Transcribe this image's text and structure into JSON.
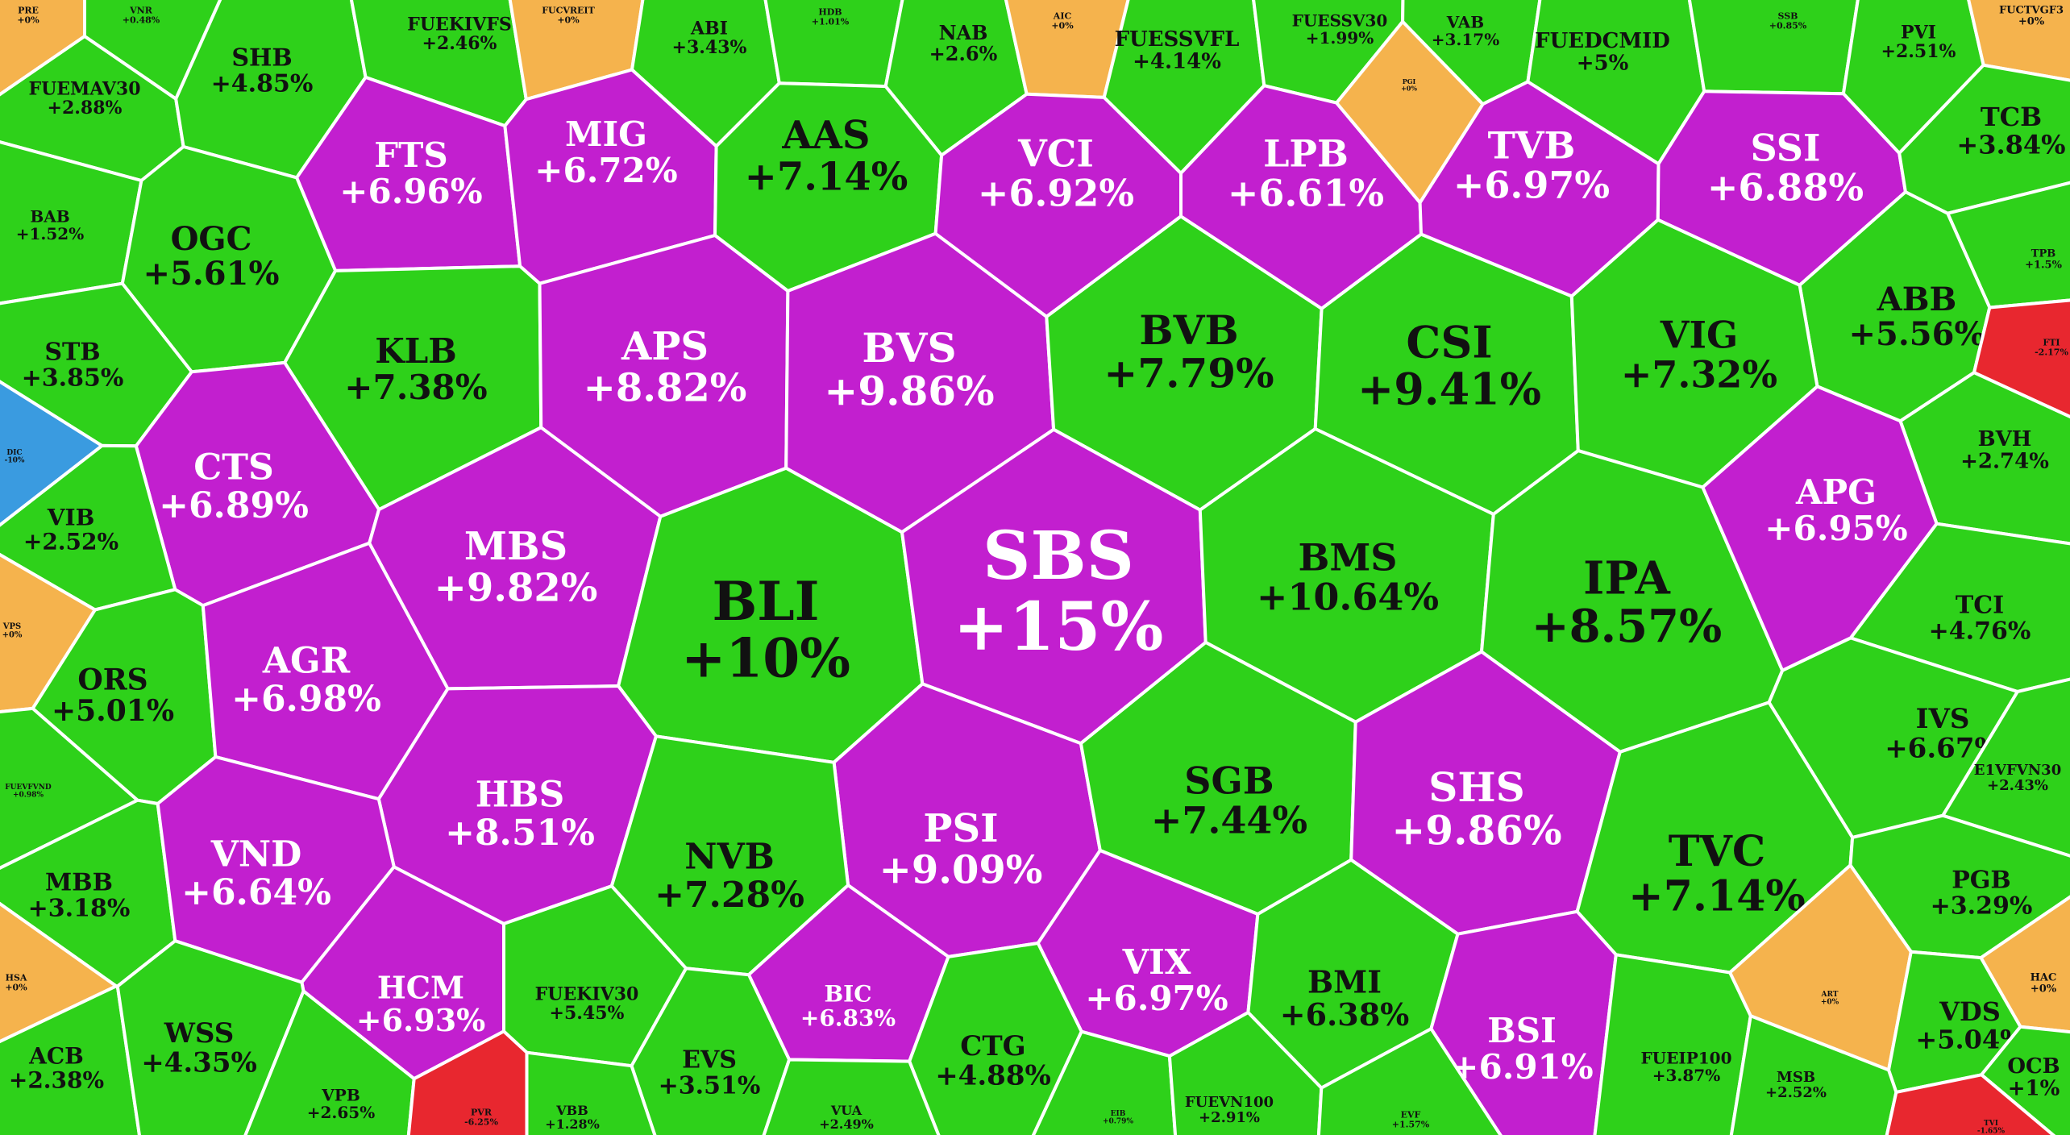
{
  "colors": {
    "up": "#2ed11a",
    "ceiling": "#c21fcf",
    "flat": "#f5b34d",
    "down": "#e8272f",
    "floor": "#3a9be0",
    "cell_border": "#ffffff",
    "text_dark": "#111111",
    "text_light": "#ffffff"
  },
  "chart_data": {
    "type": "voronoi-treemap",
    "unit": "%",
    "categories_legend_implied": [
      "ceiling",
      "up",
      "flat",
      "down",
      "floor"
    ],
    "cells": [
      {
        "label": "PRE",
        "value": "+0%",
        "status": "flat"
      },
      {
        "label": "VNR",
        "value": "+0.48%",
        "status": "up"
      },
      {
        "label": "FUEMAV30",
        "value": "+2.88%",
        "status": "up"
      },
      {
        "label": "SHB",
        "value": "+4.85%",
        "status": "up"
      },
      {
        "label": "FUEKIVFS",
        "value": "+2.46%",
        "status": "up"
      },
      {
        "label": "FUCVREIT",
        "value": "+0%",
        "status": "flat"
      },
      {
        "label": "ABI",
        "value": "+3.43%",
        "status": "up"
      },
      {
        "label": "HDB",
        "value": "+1.01%",
        "status": "up"
      },
      {
        "label": "NAB",
        "value": "+2.6%",
        "status": "up"
      },
      {
        "label": "AIC",
        "value": "+0%",
        "status": "flat"
      },
      {
        "label": "FUESSVFL",
        "value": "+4.14%",
        "status": "up"
      },
      {
        "label": "FUESSV30",
        "value": "+1.99%",
        "status": "up"
      },
      {
        "label": "VAB",
        "value": "+3.17%",
        "status": "up"
      },
      {
        "label": "FUEDCMID",
        "value": "+5%",
        "status": "up"
      },
      {
        "label": "SSB",
        "value": "+0.85%",
        "status": "up"
      },
      {
        "label": "PVI",
        "value": "+2.51%",
        "status": "up"
      },
      {
        "label": "FUCTVGF3",
        "value": "+0%",
        "status": "flat"
      },
      {
        "label": "FTS",
        "value": "+6.96%",
        "status": "ceiling"
      },
      {
        "label": "MIG",
        "value": "+6.72%",
        "status": "ceiling"
      },
      {
        "label": "AAS",
        "value": "+7.14%",
        "status": "up"
      },
      {
        "label": "VCI",
        "value": "+6.92%",
        "status": "ceiling"
      },
      {
        "label": "LPB",
        "value": "+6.61%",
        "status": "ceiling"
      },
      {
        "label": "TVB",
        "value": "+6.97%",
        "status": "ceiling"
      },
      {
        "label": "SSI",
        "value": "+6.88%",
        "status": "ceiling"
      },
      {
        "label": "TCB",
        "value": "+3.84%",
        "status": "up"
      },
      {
        "label": "PGI",
        "value": "+0%",
        "status": "flat"
      },
      {
        "label": "BAB",
        "value": "+1.52%",
        "status": "up"
      },
      {
        "label": "OGC",
        "value": "+5.61%",
        "status": "up"
      },
      {
        "label": "TPB",
        "value": "+1.5%",
        "status": "up"
      },
      {
        "label": "ABB",
        "value": "+5.56%",
        "status": "up"
      },
      {
        "label": "STB",
        "value": "+3.85%",
        "status": "up"
      },
      {
        "label": "KLB",
        "value": "+7.38%",
        "status": "up"
      },
      {
        "label": "APS",
        "value": "+8.82%",
        "status": "ceiling"
      },
      {
        "label": "BVS",
        "value": "+9.86%",
        "status": "ceiling"
      },
      {
        "label": "BVB",
        "value": "+7.79%",
        "status": "up"
      },
      {
        "label": "CSI",
        "value": "+9.41%",
        "status": "up"
      },
      {
        "label": "VIG",
        "value": "+7.32%",
        "status": "up"
      },
      {
        "label": "FTI",
        "value": "-2.17%",
        "status": "down"
      },
      {
        "label": "DIC",
        "value": "-10%",
        "status": "floor"
      },
      {
        "label": "CTS",
        "value": "+6.89%",
        "status": "ceiling"
      },
      {
        "label": "BVH",
        "value": "+2.74%",
        "status": "up"
      },
      {
        "label": "VIB",
        "value": "+2.52%",
        "status": "up"
      },
      {
        "label": "MBS",
        "value": "+9.82%",
        "status": "ceiling"
      },
      {
        "label": "BLI",
        "value": "+10%",
        "status": "up"
      },
      {
        "label": "SBS",
        "value": "+15%",
        "status": "ceiling"
      },
      {
        "label": "BMS",
        "value": "+10.64%",
        "status": "up"
      },
      {
        "label": "IPA",
        "value": "+8.57%",
        "status": "up"
      },
      {
        "label": "APG",
        "value": "+6.95%",
        "status": "ceiling"
      },
      {
        "label": "VPS",
        "value": "+0%",
        "status": "flat"
      },
      {
        "label": "ORS",
        "value": "+5.01%",
        "status": "up"
      },
      {
        "label": "AGR",
        "value": "+6.98%",
        "status": "ceiling"
      },
      {
        "label": "TCI",
        "value": "+4.76%",
        "status": "up"
      },
      {
        "label": "FUEVFVND",
        "value": "+0.98%",
        "status": "up"
      },
      {
        "label": "HBS",
        "value": "+8.51%",
        "status": "ceiling"
      },
      {
        "label": "PSI",
        "value": "+9.09%",
        "status": "ceiling"
      },
      {
        "label": "SGB",
        "value": "+7.44%",
        "status": "up"
      },
      {
        "label": "SHS",
        "value": "+9.86%",
        "status": "ceiling"
      },
      {
        "label": "IVS",
        "value": "+6.67%",
        "status": "up"
      },
      {
        "label": "E1VFVN30",
        "value": "+2.43%",
        "status": "up"
      },
      {
        "label": "MBB",
        "value": "+3.18%",
        "status": "up"
      },
      {
        "label": "VND",
        "value": "+6.64%",
        "status": "ceiling"
      },
      {
        "label": "NVB",
        "value": "+7.28%",
        "status": "up"
      },
      {
        "label": "TVC",
        "value": "+7.14%",
        "status": "up"
      },
      {
        "label": "PGB",
        "value": "+3.29%",
        "status": "up"
      },
      {
        "label": "HSA",
        "value": "+0%",
        "status": "flat"
      },
      {
        "label": "HCM",
        "value": "+6.93%",
        "status": "ceiling"
      },
      {
        "label": "FUEKIV30",
        "value": "+5.45%",
        "status": "up"
      },
      {
        "label": "BIC",
        "value": "+6.83%",
        "status": "ceiling"
      },
      {
        "label": "VIX",
        "value": "+6.97%",
        "status": "ceiling"
      },
      {
        "label": "BMI",
        "value": "+6.38%",
        "status": "up"
      },
      {
        "label": "BSI",
        "value": "+6.91%",
        "status": "ceiling"
      },
      {
        "label": "HAC",
        "value": "+0%",
        "status": "flat"
      },
      {
        "label": "ART",
        "value": "+0%",
        "status": "flat"
      },
      {
        "label": "VDS",
        "value": "+5.04%",
        "status": "up"
      },
      {
        "label": "ACB",
        "value": "+2.38%",
        "status": "up"
      },
      {
        "label": "WSS",
        "value": "+4.35%",
        "status": "up"
      },
      {
        "label": "EVS",
        "value": "+3.51%",
        "status": "up"
      },
      {
        "label": "CTG",
        "value": "+4.88%",
        "status": "up"
      },
      {
        "label": "FUEIP100",
        "value": "+3.87%",
        "status": "up"
      },
      {
        "label": "MSB",
        "value": "+2.52%",
        "status": "up"
      },
      {
        "label": "OCB",
        "value": "+1%",
        "status": "up"
      },
      {
        "label": "VPB",
        "value": "+2.65%",
        "status": "up"
      },
      {
        "label": "PVR",
        "value": "-6.25%",
        "status": "down"
      },
      {
        "label": "VBB",
        "value": "+1.28%",
        "status": "up"
      },
      {
        "label": "VUA",
        "value": "+2.49%",
        "status": "up"
      },
      {
        "label": "EIB",
        "value": "+0.79%",
        "status": "up"
      },
      {
        "label": "FUEVN100",
        "value": "+2.91%",
        "status": "up"
      },
      {
        "label": "EVF",
        "value": "+1.57%",
        "status": "up"
      },
      {
        "label": "TVI",
        "value": "-1.65%",
        "status": "down"
      }
    ]
  }
}
